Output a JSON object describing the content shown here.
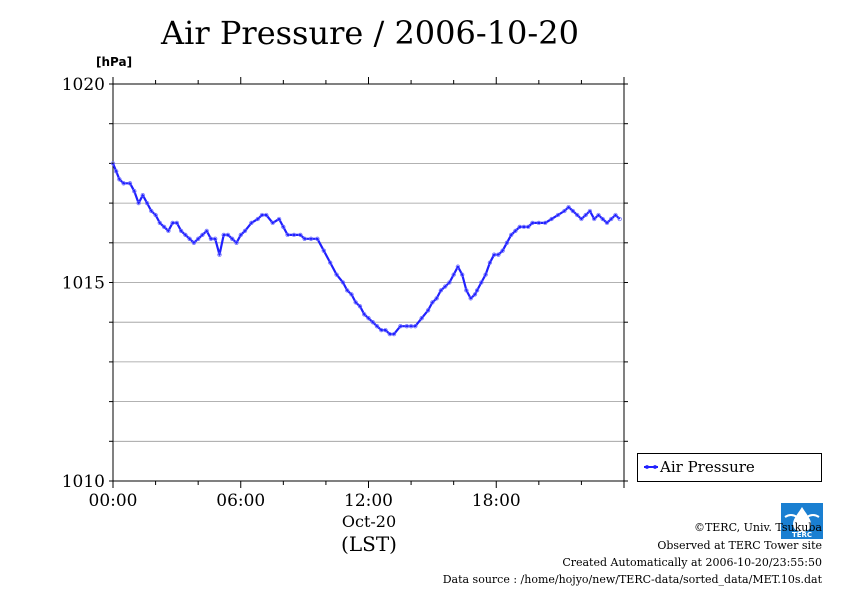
{
  "page": {
    "title": "Air Pressure / 2006-10-20",
    "unit_label": "[hPa]",
    "date_label": "Oct-20",
    "timezone_label": "(LST)"
  },
  "credits": {
    "copyright": "©TERC, Univ. Tsukuba",
    "observed": "Observed at TERC Tower site",
    "created": "Created Automatically at 2006-10-20/23:55:50",
    "source": "Data source : /home/hojyo/new/TERC-data/sorted_data/MET.10s.dat"
  },
  "logo": {
    "text": "TERC",
    "icon": "terc-water-drop-logo"
  },
  "colors": {
    "series": "#2020ff",
    "grid": "#999999",
    "axis": "#000000"
  },
  "chart_data": {
    "type": "line",
    "title": "Air Pressure / 2006-10-20",
    "ylabel": "[hPa]",
    "xlabel": "(LST)",
    "xlim": [
      0,
      24
    ],
    "ylim": [
      1010,
      1020
    ],
    "y_ticks": [
      1010,
      1015,
      1020
    ],
    "x_ticks": [
      {
        "value": 0,
        "label": "00:00"
      },
      {
        "value": 6,
        "label": "06:00"
      },
      {
        "value": 12,
        "label": "12:00"
      },
      {
        "value": 18,
        "label": "18:00"
      }
    ],
    "grid": true,
    "legend": "right",
    "series": [
      {
        "name": "Air Pressure",
        "color": "#2020ff",
        "x": [
          0,
          0.15,
          0.3,
          0.5,
          0.8,
          1.0,
          1.2,
          1.4,
          1.6,
          1.8,
          2.0,
          2.2,
          2.4,
          2.6,
          2.8,
          3.0,
          3.2,
          3.4,
          3.6,
          3.8,
          4.0,
          4.2,
          4.4,
          4.6,
          4.8,
          5.0,
          5.2,
          5.4,
          5.6,
          5.8,
          6.0,
          6.2,
          6.5,
          6.8,
          7.0,
          7.2,
          7.5,
          7.8,
          8.0,
          8.2,
          8.5,
          8.8,
          9.0,
          9.3,
          9.6,
          9.9,
          10.2,
          10.5,
          10.8,
          11.0,
          11.2,
          11.4,
          11.6,
          11.8,
          12.0,
          12.2,
          12.4,
          12.6,
          12.8,
          13.0,
          13.2,
          13.5,
          13.8,
          14.0,
          14.2,
          14.5,
          14.8,
          15.0,
          15.2,
          15.4,
          15.6,
          15.8,
          16.0,
          16.2,
          16.4,
          16.6,
          16.8,
          17.0,
          17.1,
          17.3,
          17.5,
          17.7,
          17.9,
          18.1,
          18.3,
          18.5,
          18.7,
          18.9,
          19.1,
          19.3,
          19.5,
          19.7,
          20.0,
          20.3,
          20.6,
          20.9,
          21.2,
          21.4,
          21.6,
          21.8,
          22.0,
          22.2,
          22.4,
          22.6,
          22.8,
          23.0,
          23.2,
          23.4,
          23.6,
          23.8
        ],
        "y": [
          1018.0,
          1017.8,
          1017.6,
          1017.5,
          1017.5,
          1017.3,
          1017.0,
          1017.2,
          1017.0,
          1016.8,
          1016.7,
          1016.5,
          1016.4,
          1016.3,
          1016.5,
          1016.5,
          1016.3,
          1016.2,
          1016.1,
          1016.0,
          1016.1,
          1016.2,
          1016.3,
          1016.1,
          1016.1,
          1015.7,
          1016.2,
          1016.2,
          1016.1,
          1016.0,
          1016.2,
          1016.3,
          1016.5,
          1016.6,
          1016.7,
          1016.7,
          1016.5,
          1016.6,
          1016.4,
          1016.2,
          1016.2,
          1016.2,
          1016.1,
          1016.1,
          1016.1,
          1015.8,
          1015.5,
          1015.2,
          1015.0,
          1014.8,
          1014.7,
          1014.5,
          1014.4,
          1014.2,
          1014.1,
          1014.0,
          1013.9,
          1013.8,
          1013.8,
          1013.7,
          1013.7,
          1013.9,
          1013.9,
          1013.9,
          1013.9,
          1014.1,
          1014.3,
          1014.5,
          1014.6,
          1014.8,
          1014.9,
          1015.0,
          1015.2,
          1015.4,
          1015.2,
          1014.8,
          1014.6,
          1014.7,
          1014.8,
          1015.0,
          1015.2,
          1015.5,
          1015.7,
          1015.7,
          1015.8,
          1016.0,
          1016.2,
          1016.3,
          1016.4,
          1016.4,
          1016.4,
          1016.5,
          1016.5,
          1016.5,
          1016.6,
          1016.7,
          1016.8,
          1016.9,
          1016.8,
          1016.7,
          1016.6,
          1016.7,
          1016.8,
          1016.6,
          1016.7,
          1016.6,
          1016.5,
          1016.6,
          1016.7,
          1016.6
        ]
      }
    ]
  }
}
